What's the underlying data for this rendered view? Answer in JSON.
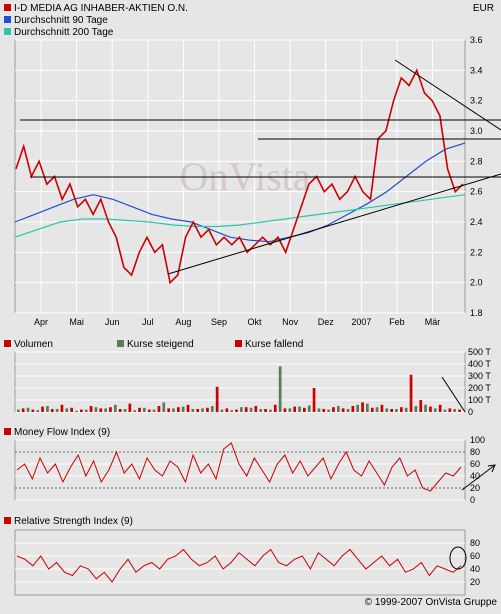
{
  "header": {
    "legend": [
      {
        "label": "I-D MEDIA AG INHABER-AKTIEN O.N.",
        "color": "#cc0000"
      },
      {
        "label": "Durchschnitt 90 Tage",
        "color": "#1f4fd0"
      },
      {
        "label": "Durchschnitt 200 Tage",
        "color": "#2ec6a8"
      }
    ],
    "currency": "EUR"
  },
  "volume_panel": {
    "title": "Volumen",
    "legend": [
      {
        "label": "Kurse steigend",
        "color": "#5a7a5a"
      },
      {
        "label": "Kurse fallend",
        "color": "#cc0000"
      }
    ],
    "y_ticks": [
      "500 T",
      "400 T",
      "300 T",
      "200 T",
      "100 T",
      "0"
    ]
  },
  "mfi_panel": {
    "title": "Money Flow Index (9)",
    "y_ticks": [
      "100",
      "80",
      "60",
      "40",
      "20",
      "0"
    ]
  },
  "rsi_panel": {
    "title": "Relative Strength Index (9)",
    "y_ticks": [
      "80",
      "60",
      "40",
      "20"
    ]
  },
  "copyright": "© 1999-2007 OnVista Gruppe",
  "watermark": "OnVista",
  "chart_data": [
    {
      "type": "line",
      "title": "I-D MEDIA AG INHABER-AKTIEN O.N.",
      "unit": "EUR",
      "x_ticks": [
        "Apr",
        "Mai",
        "Jun",
        "Jul",
        "Aug",
        "Sep",
        "Okt",
        "Nov",
        "Dez",
        "2007",
        "Feb",
        "Mär"
      ],
      "y_ticks": [
        "3.6",
        "3.4",
        "3.2",
        "3.0",
        "2.8",
        "2.6",
        "2.4",
        "2.2",
        "2.0",
        "1.8"
      ],
      "ylim": [
        1.8,
        3.6
      ],
      "grid": true,
      "series": [
        {
          "name": "I-D MEDIA AG INHABER-AKTIEN O.N.",
          "color": "#cc0000",
          "values": [
            2.75,
            2.9,
            2.7,
            2.8,
            2.65,
            2.7,
            2.55,
            2.65,
            2.5,
            2.55,
            2.45,
            2.55,
            2.4,
            2.3,
            2.1,
            2.05,
            2.2,
            2.3,
            2.2,
            2.25,
            2.0,
            2.05,
            2.3,
            2.4,
            2.3,
            2.35,
            2.25,
            2.3,
            2.25,
            2.3,
            2.2,
            2.25,
            2.3,
            2.25,
            2.3,
            2.2,
            2.35,
            2.5,
            2.65,
            2.7,
            2.6,
            2.65,
            2.55,
            2.6,
            2.7,
            2.6,
            2.55,
            2.95,
            3.0,
            3.2,
            3.35,
            3.3,
            3.4,
            3.25,
            3.2,
            3.1,
            2.75,
            2.6,
            2.65
          ]
        },
        {
          "name": "Durchschnitt 90 Tage",
          "color": "#1f4fd0",
          "values": [
            2.4,
            2.45,
            2.5,
            2.55,
            2.58,
            2.55,
            2.5,
            2.45,
            2.42,
            2.4,
            2.35,
            2.3,
            2.28,
            2.27,
            2.3,
            2.33,
            2.38,
            2.45,
            2.52,
            2.6,
            2.7,
            2.8,
            2.88,
            2.92
          ]
        },
        {
          "name": "Durchschnitt 200 Tage",
          "color": "#2ec6a8",
          "values": [
            2.3,
            2.35,
            2.4,
            2.42,
            2.42,
            2.41,
            2.4,
            2.38,
            2.37,
            2.37,
            2.38,
            2.4,
            2.42,
            2.44,
            2.46,
            2.48,
            2.5,
            2.52,
            2.54,
            2.56,
            2.58
          ]
        }
      ]
    },
    {
      "type": "bar",
      "title": "Volumen",
      "ylim": [
        0,
        500
      ],
      "unit": "T",
      "series": [
        {
          "name": "Kurse steigend",
          "color": "#5a7a5a",
          "values": [
            20,
            35,
            15,
            50,
            25,
            30,
            10,
            20,
            40,
            30,
            60,
            25,
            15,
            35,
            20,
            80,
            30,
            45,
            25,
            30,
            50,
            20,
            15,
            40,
            35,
            25,
            20,
            380,
            30,
            45,
            55,
            30,
            20,
            50,
            25,
            60,
            70,
            40,
            30,
            25,
            35,
            50,
            60,
            30,
            20,
            25
          ]
        },
        {
          "name": "Kurse fallend",
          "color": "#cc0000",
          "values": [
            30,
            20,
            45,
            25,
            60,
            35,
            20,
            50,
            30,
            40,
            25,
            70,
            35,
            20,
            50,
            30,
            40,
            60,
            25,
            35,
            210,
            30,
            20,
            40,
            50,
            25,
            60,
            30,
            45,
            35,
            200,
            25,
            40,
            30,
            50,
            80,
            35,
            60,
            25,
            40,
            310,
            100,
            45,
            60,
            30,
            20
          ]
        }
      ]
    },
    {
      "type": "line",
      "title": "Money Flow Index (9)",
      "ylim": [
        0,
        100
      ],
      "series": [
        {
          "name": "Money Flow Index (9)",
          "color": "#cc0000",
          "values": [
            50,
            60,
            35,
            70,
            45,
            60,
            30,
            55,
            75,
            40,
            65,
            30,
            50,
            80,
            45,
            60,
            35,
            70,
            50,
            40,
            65,
            55,
            30,
            75,
            45,
            60,
            35,
            85,
            95,
            60,
            40,
            70,
            50,
            30,
            60,
            75,
            45,
            65,
            40,
            55,
            70,
            35,
            60,
            80,
            50,
            40,
            65,
            45,
            25,
            55,
            70,
            40,
            50,
            20,
            15,
            30,
            45,
            40,
            55
          ]
        }
      ]
    },
    {
      "type": "line",
      "title": "Relative Strength Index (9)",
      "ylim": [
        0,
        100
      ],
      "series": [
        {
          "name": "Relative Strength Index (9)",
          "color": "#cc0000",
          "values": [
            60,
            55,
            45,
            60,
            40,
            50,
            35,
            30,
            45,
            40,
            25,
            35,
            20,
            40,
            55,
            35,
            45,
            50,
            40,
            55,
            60,
            70,
            55,
            45,
            50,
            60,
            40,
            50,
            65,
            55,
            45,
            60,
            70,
            50,
            45,
            55,
            60,
            40,
            65,
            55,
            45,
            60,
            70,
            55,
            40,
            50,
            60,
            45,
            55,
            35,
            40,
            50,
            30,
            45,
            40,
            35,
            45
          ]
        }
      ]
    }
  ]
}
